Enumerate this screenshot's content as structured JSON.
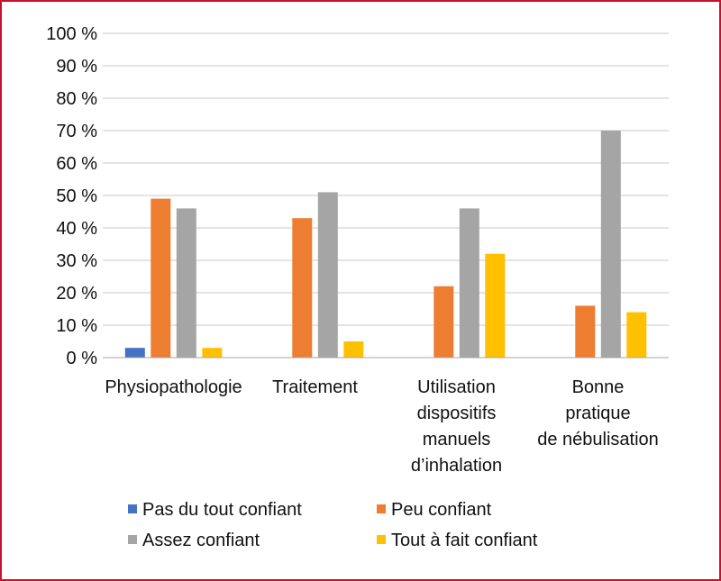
{
  "chart_data": {
    "type": "bar",
    "title": "",
    "xlabel": "",
    "ylabel": "",
    "ylim": [
      0,
      100
    ],
    "y_ticks": [
      "0 %",
      "10 %",
      "20 %",
      "30 %",
      "40 %",
      "50 %",
      "60 %",
      "70 %",
      "80 %",
      "90 %",
      "100 %"
    ],
    "grid": true,
    "legend_position": "bottom",
    "categories": [
      [
        "Physiopathologie"
      ],
      [
        "Traitement"
      ],
      [
        "Utilisation",
        "dispositifs",
        "manuels",
        "d’inhalation"
      ],
      [
        "Bonne",
        "pratique",
        "de nébulisation"
      ]
    ],
    "series": [
      {
        "name": "Pas du tout confiant",
        "color": "#4472c4",
        "values": [
          3,
          0,
          0,
          0
        ]
      },
      {
        "name": "Peu confiant",
        "color": "#ed7d31",
        "values": [
          49,
          43,
          22,
          16
        ]
      },
      {
        "name": "Assez confiant",
        "color": "#a5a5a5",
        "values": [
          46,
          51,
          46,
          70
        ]
      },
      {
        "name": "Tout à fait confiant",
        "color": "#ffc000",
        "values": [
          3,
          5,
          32,
          14
        ]
      }
    ]
  },
  "colors": {
    "frame_border": "#c8102e",
    "gridline": "#c9c9c9"
  }
}
